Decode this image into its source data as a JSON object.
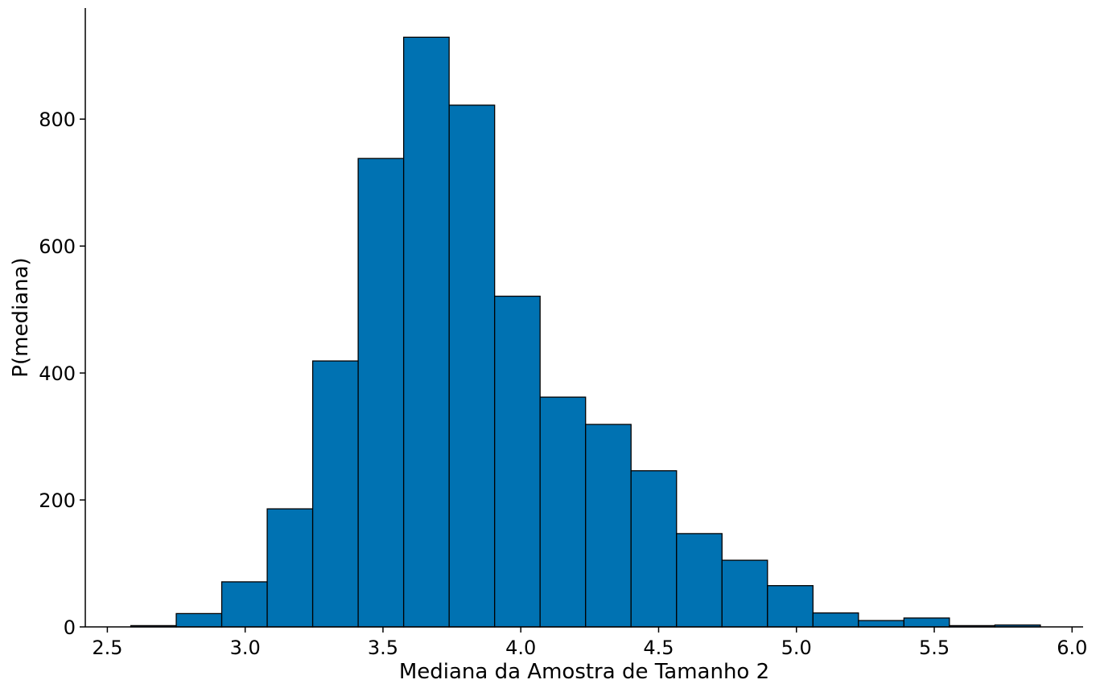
{
  "chart_data": {
    "type": "bar",
    "xlabel": "Mediana da Amostra de Tamanho 2",
    "ylabel": "P(mediana)",
    "xlim": [
      2.42,
      6.04
    ],
    "ylim": [
      0,
      975
    ],
    "x_ticks": [
      2.5,
      3.0,
      3.5,
      4.0,
      4.5,
      5.0,
      5.5,
      6.0
    ],
    "x_tick_labels": [
      "2.5",
      "3.0",
      "3.5",
      "4.0",
      "4.5",
      "5.0",
      "5.5",
      "6.0"
    ],
    "y_ticks": [
      0,
      200,
      400,
      600,
      800
    ],
    "y_tick_labels": [
      "0",
      "200",
      "400",
      "600",
      "800"
    ],
    "bin_edges": [
      2.585,
      2.75,
      2.915,
      3.08,
      3.245,
      3.41,
      3.575,
      3.74,
      3.905,
      4.07,
      4.235,
      4.4,
      4.565,
      4.73,
      4.895,
      5.06,
      5.225,
      5.39,
      5.555,
      5.72,
      5.885
    ],
    "values": [
      2,
      21,
      71,
      186,
      419,
      738,
      929,
      822,
      521,
      362,
      319,
      246,
      147,
      105,
      65,
      22,
      10,
      14,
      2,
      3
    ],
    "bar_color": "#0072b2",
    "edge_color": "#000000",
    "grid": false
  }
}
